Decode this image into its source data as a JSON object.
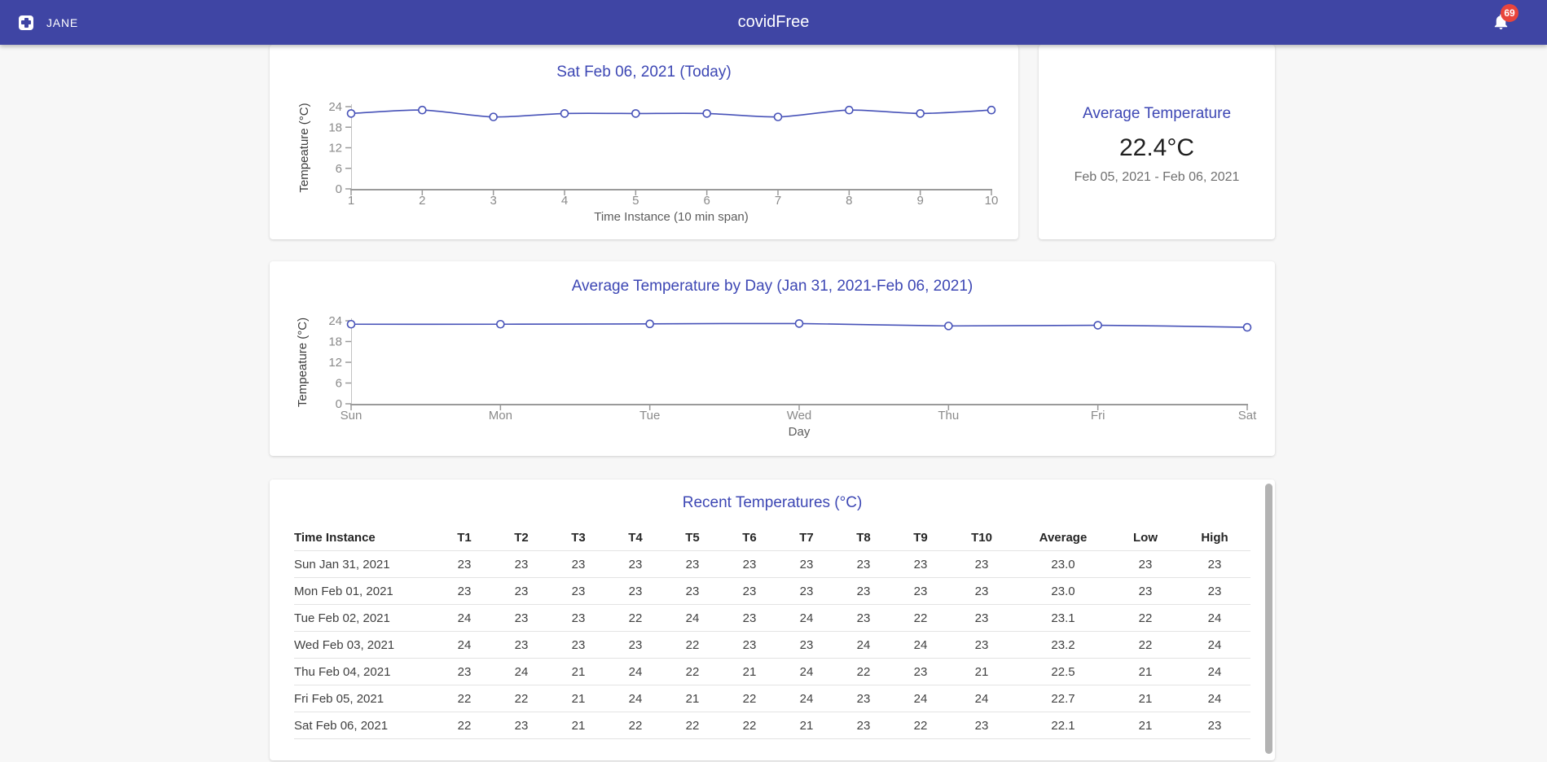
{
  "navbar": {
    "brand": "JANE",
    "title": "covidFree",
    "notifications_count": "69",
    "icons": {
      "brand": "medical-plus-icon",
      "notifications": "bell-icon"
    }
  },
  "colors": {
    "navbar_background": "#3f45a4",
    "accent_blue": "#3d47b4",
    "chart_line": "#4752b8",
    "badge_red": "#e8453c",
    "axis_gray": "#9a9a9a"
  },
  "average_card": {
    "title": "Average Temperature",
    "value": "22.4°C",
    "range": "Feb 05, 2021 - Feb 06, 2021"
  },
  "chart_data": [
    {
      "type": "line",
      "title": "Sat Feb 06, 2021 (Today)",
      "xlabel": "Time Instance (10 min span)",
      "ylabel": "Tempeature (°C)",
      "x": [
        "1",
        "2",
        "3",
        "4",
        "5",
        "6",
        "7",
        "8",
        "9",
        "10"
      ],
      "values": [
        22,
        23,
        21,
        22,
        22,
        22,
        21,
        23,
        22,
        23
      ],
      "ylim": [
        0,
        24
      ],
      "yticks": [
        0,
        6,
        12,
        18,
        24
      ],
      "grid": false,
      "legend": false,
      "marker": "open-circle"
    },
    {
      "type": "line",
      "title": "Average Temperature by Day (Jan 31, 2021-Feb 06, 2021)",
      "xlabel": "Day",
      "ylabel": "Tempeature (°C)",
      "x": [
        "Sun",
        "Mon",
        "Tue",
        "Wed",
        "Thu",
        "Fri",
        "Sat"
      ],
      "values": [
        23.0,
        23.0,
        23.1,
        23.2,
        22.5,
        22.7,
        22.1
      ],
      "ylim": [
        0,
        24
      ],
      "yticks": [
        0,
        6,
        12,
        18,
        24
      ],
      "grid": false,
      "legend": false,
      "marker": "open-circle"
    }
  ],
  "table": {
    "title": "Recent Temperatures (°C)",
    "columns": [
      "Time Instance",
      "T1",
      "T2",
      "T3",
      "T4",
      "T5",
      "T6",
      "T7",
      "T8",
      "T9",
      "T10",
      "Average",
      "Low",
      "High"
    ],
    "rows": [
      [
        "Sun Jan 31, 2021",
        "23",
        "23",
        "23",
        "23",
        "23",
        "23",
        "23",
        "23",
        "23",
        "23",
        "23.0",
        "23",
        "23"
      ],
      [
        "Mon Feb 01, 2021",
        "23",
        "23",
        "23",
        "23",
        "23",
        "23",
        "23",
        "23",
        "23",
        "23",
        "23.0",
        "23",
        "23"
      ],
      [
        "Tue Feb 02, 2021",
        "24",
        "23",
        "23",
        "22",
        "24",
        "23",
        "24",
        "23",
        "22",
        "23",
        "23.1",
        "22",
        "24"
      ],
      [
        "Wed Feb 03, 2021",
        "24",
        "23",
        "23",
        "23",
        "22",
        "23",
        "23",
        "24",
        "24",
        "23",
        "23.2",
        "22",
        "24"
      ],
      [
        "Thu Feb 04, 2021",
        "23",
        "24",
        "21",
        "24",
        "22",
        "21",
        "24",
        "22",
        "23",
        "21",
        "22.5",
        "21",
        "24"
      ],
      [
        "Fri Feb 05, 2021",
        "22",
        "22",
        "21",
        "24",
        "21",
        "22",
        "24",
        "23",
        "24",
        "24",
        "22.7",
        "21",
        "24"
      ],
      [
        "Sat Feb 06, 2021",
        "22",
        "23",
        "21",
        "22",
        "22",
        "22",
        "21",
        "23",
        "22",
        "23",
        "22.1",
        "21",
        "23"
      ]
    ]
  }
}
